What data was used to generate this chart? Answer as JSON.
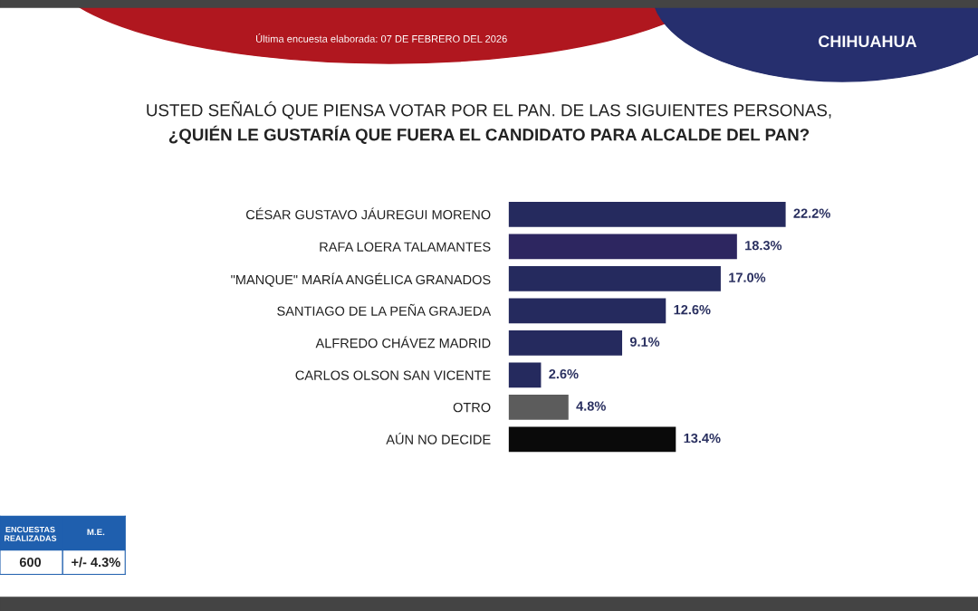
{
  "chart_data": {
    "type": "bar",
    "orientation": "horizontal",
    "title": "USTED SEÑALÓ QUE PIENSA VOTAR POR EL PAN. DE LAS SIGUIENTES PERSONAS,",
    "subtitle": "¿QUIÉN LE GUSTARÍA QUE FUERA EL CANDIDATO PARA ALCALDE DEL PAN?",
    "categories": [
      "CÉSAR GUSTAVO JÁUREGUI MORENO",
      "RAFA LOERA TALAMANTES",
      "\"MANQUE\" MARÍA ANGÉLICA GRANADOS",
      "SANTIAGO DE LA PEÑA GRAJEDA",
      "ALFREDO CHÁVEZ MADRID",
      "CARLOS OLSON SAN VICENTE",
      "OTRO",
      "AÚN NO DECIDE"
    ],
    "values": [
      22.2,
      18.3,
      17.0,
      12.6,
      9.1,
      2.6,
      4.8,
      13.4
    ],
    "value_labels": [
      "22.2%",
      "18.3%",
      "17.0%",
      "12.6%",
      "9.1%",
      "2.6%",
      "4.8%",
      "13.4%"
    ],
    "colors": [
      "#252a5e",
      "#2d2660",
      "#252a5e",
      "#252a5e",
      "#252a5e",
      "#252a5e",
      "#5c5c5c",
      "#0a0a0a"
    ],
    "grid": false,
    "legend": false,
    "annotations": [
      "Última encuesta elaborada: 07 DE FEBRERO DEL 2026",
      "CHIHUAHUA",
      "ENCUESTAS REALIZADAS",
      "M.E.",
      "600",
      "+/- 4.3%"
    ]
  }
}
